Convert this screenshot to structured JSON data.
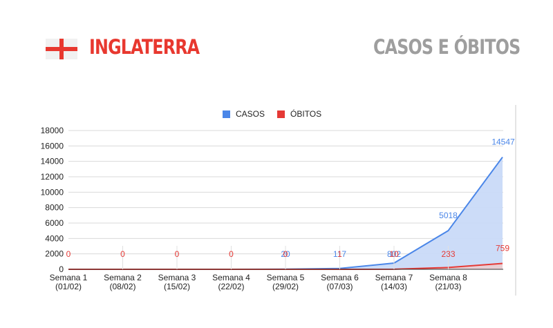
{
  "header": {
    "country": "INGLATERRA",
    "subtitle": "CASOS E ÓBITOS"
  },
  "colors": {
    "casos": "#4a86e8",
    "casos_fill": "#c9daf8",
    "obitos": "#e53935",
    "flag": "#e8382f",
    "title_gray": "#9e9e9e"
  },
  "chart_data": {
    "type": "area",
    "categories": [
      [
        "Semana 1",
        "(01/02)"
      ],
      [
        "Semana 2",
        "(08/02)"
      ],
      [
        "Semana 3",
        "(15/02)"
      ],
      [
        "Semana 4",
        "(22/02)"
      ],
      [
        "Semana 5",
        "(29/02)"
      ],
      [
        "Semana 6",
        "(07/03)"
      ],
      [
        "Semana 7",
        "(14/03)"
      ],
      [
        "Semana 8",
        "(21/03)"
      ],
      [
        "",
        ""
      ]
    ],
    "series": [
      {
        "name": "CASOS",
        "values": [
          0,
          0,
          0,
          0,
          20,
          117,
          802,
          5018,
          14547
        ],
        "labels": [
          "",
          "",
          "",
          "",
          "20",
          "117",
          "802",
          "5018",
          "14547"
        ]
      },
      {
        "name": "ÓBITOS",
        "values": [
          0,
          0,
          0,
          0,
          0,
          1,
          10,
          233,
          759
        ],
        "labels": [
          "0",
          "0",
          "0",
          "0",
          "0",
          "1",
          "10",
          "233",
          "759"
        ]
      }
    ],
    "ylim": [
      0,
      18000
    ],
    "yticks": [
      "0",
      "2000",
      "4000",
      "6000",
      "8000",
      "10000",
      "12000",
      "14000",
      "16000",
      "18000"
    ],
    "grid": true,
    "legend_position": "top"
  }
}
